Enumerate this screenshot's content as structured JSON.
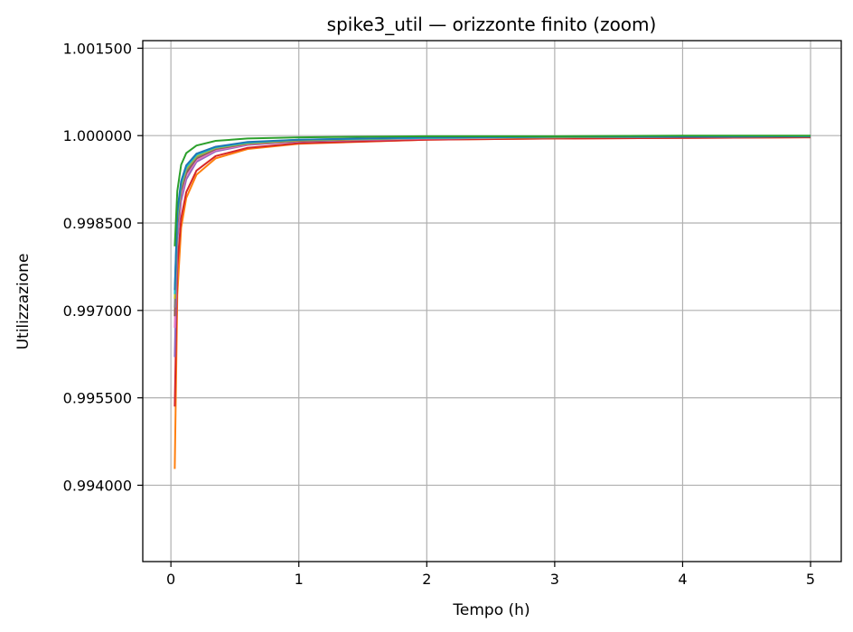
{
  "chart_data": {
    "type": "line",
    "title": "spike3_util — orizzonte finito (zoom)",
    "xlabel": "Tempo (h)",
    "ylabel": "Utilizzazione",
    "xlim": [
      -0.22,
      5.24
    ],
    "ylim": [
      0.99269,
      1.00163
    ],
    "x_ticks": [
      0,
      1,
      2,
      3,
      4,
      5
    ],
    "x_tick_labels": [
      "0",
      "1",
      "2",
      "3",
      "4",
      "5"
    ],
    "y_ticks": [
      0.994,
      0.9955,
      0.997,
      0.9985,
      1.0,
      1.0015
    ],
    "y_tick_labels": [
      "0.994000",
      "0.995500",
      "0.997000",
      "0.998500",
      "1.000000",
      "1.001500"
    ],
    "grid": true,
    "series": [
      {
        "color": "#ff7f0e",
        "x": [
          0.03,
          0.05,
          0.08,
          0.12,
          0.2,
          0.35,
          0.6,
          1.0,
          2.0,
          3.0,
          4.0,
          5.0
        ],
        "values": [
          0.99428,
          0.99727,
          0.99842,
          0.99893,
          0.99933,
          0.99961,
          0.99977,
          0.99986,
          0.99993,
          0.99995,
          0.99996,
          0.99997
        ]
      },
      {
        "color": "#d62728",
        "x": [
          0.03,
          0.05,
          0.08,
          0.12,
          0.2,
          0.35,
          0.6,
          1.0,
          2.0,
          3.0,
          4.0,
          5.0
        ],
        "values": [
          0.99535,
          0.99775,
          0.99858,
          0.99903,
          0.9994,
          0.99965,
          0.99979,
          0.99987,
          0.99993,
          0.99995,
          0.99996,
          0.99997
        ]
      },
      {
        "color": "#9467bd",
        "x": [
          0.03,
          0.05,
          0.08,
          0.12,
          0.2,
          0.35,
          0.6,
          1.0,
          2.0,
          3.0,
          4.0,
          5.0
        ],
        "values": [
          0.9962,
          0.9982,
          0.99888,
          0.99925,
          0.99955,
          0.99973,
          0.99984,
          0.9999,
          0.99995,
          0.99997,
          0.99998,
          0.99998
        ]
      },
      {
        "color": "#e377c2",
        "x": [
          0.03,
          0.05,
          0.08,
          0.12,
          0.2,
          0.35,
          0.6,
          1.0,
          2.0,
          3.0,
          4.0,
          5.0
        ],
        "values": [
          0.9967,
          0.99835,
          0.99898,
          0.99932,
          0.99958,
          0.99975,
          0.99985,
          0.99991,
          0.99995,
          0.99997,
          0.99998,
          0.99998
        ]
      },
      {
        "color": "#8c564b",
        "x": [
          0.03,
          0.05,
          0.08,
          0.12,
          0.2,
          0.35,
          0.6,
          1.0,
          2.0,
          3.0,
          4.0,
          5.0
        ],
        "values": [
          0.9969,
          0.99845,
          0.99905,
          0.99936,
          0.99961,
          0.99977,
          0.99986,
          0.99991,
          0.99996,
          0.99997,
          0.99998,
          0.99998
        ]
      },
      {
        "color": "#7f7f7f",
        "x": [
          0.03,
          0.05,
          0.08,
          0.12,
          0.2,
          0.35,
          0.6,
          1.0,
          2.0,
          3.0,
          4.0,
          5.0
        ],
        "values": [
          0.99705,
          0.9985,
          0.9991,
          0.9994,
          0.99963,
          0.99978,
          0.99987,
          0.99992,
          0.99996,
          0.99997,
          0.99998,
          0.99999
        ]
      },
      {
        "color": "#bcbd22",
        "x": [
          0.03,
          0.05,
          0.08,
          0.12,
          0.2,
          0.35,
          0.6,
          1.0,
          2.0,
          3.0,
          4.0,
          5.0
        ],
        "values": [
          0.9972,
          0.9986,
          0.99915,
          0.99943,
          0.99965,
          0.99979,
          0.99987,
          0.99992,
          0.99996,
          0.99997,
          0.99998,
          0.99999
        ]
      },
      {
        "color": "#17becf",
        "x": [
          0.03,
          0.05,
          0.08,
          0.12,
          0.2,
          0.35,
          0.6,
          1.0,
          2.0,
          3.0,
          4.0,
          5.0
        ],
        "values": [
          0.99728,
          0.99865,
          0.99918,
          0.99946,
          0.99967,
          0.9998,
          0.99988,
          0.99993,
          0.99996,
          0.99998,
          0.99998,
          0.99999
        ]
      },
      {
        "color": "#1f77b4",
        "x": [
          0.03,
          0.05,
          0.08,
          0.12,
          0.2,
          0.35,
          0.6,
          1.0,
          2.0,
          3.0,
          4.0,
          5.0
        ],
        "values": [
          0.99735,
          0.9987,
          0.99922,
          0.99949,
          0.99969,
          0.99981,
          0.99989,
          0.99993,
          0.99997,
          0.99998,
          0.99998,
          0.99999
        ]
      },
      {
        "color": "#2ca02c",
        "x": [
          0.03,
          0.05,
          0.08,
          0.12,
          0.2,
          0.35,
          0.6,
          1.0,
          2.0,
          3.0,
          4.0,
          5.0
        ],
        "values": [
          0.9981,
          0.99905,
          0.9995,
          0.9997,
          0.99983,
          0.99991,
          0.99995,
          0.99997,
          0.99999,
          0.99999,
          1.0,
          1.0
        ]
      }
    ]
  }
}
